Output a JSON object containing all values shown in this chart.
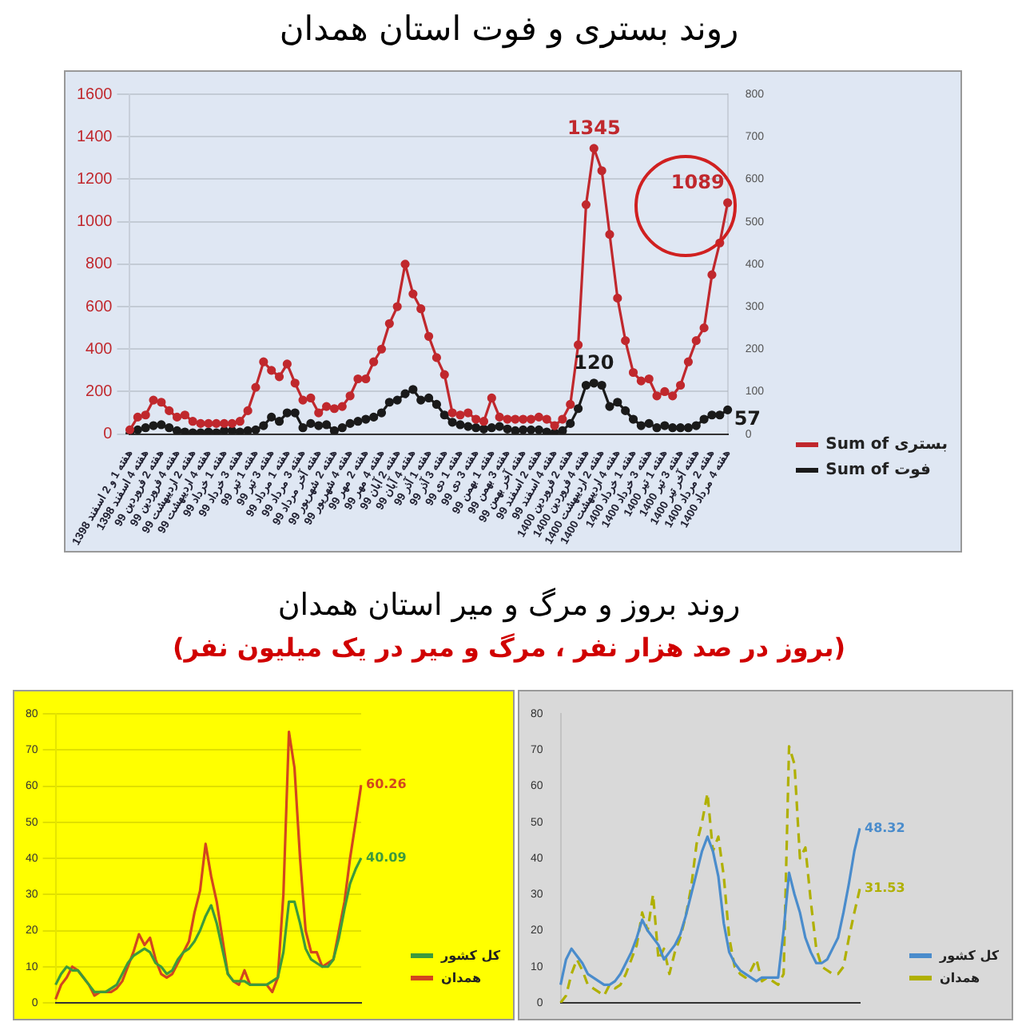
{
  "chart_data": [
    {
      "type": "line",
      "title": "روند بستری و فوت استان همدان",
      "categories": [
        "هفته 1 و 2 اسفند 1398",
        null,
        "هفته 4 اسفند 1398",
        null,
        "هفته 2 فروردین 99",
        null,
        "هفته 4 فروردین 99",
        null,
        "هفته 2 اردیبهشت 99",
        null,
        "هفته 4 اردیبهشت 99",
        null,
        "هفته 1 خرداد 99",
        null,
        "هفته 3 خرداد 99",
        null,
        "هفته 1 تیر 99",
        null,
        "هفته 3 تیر 99",
        null,
        "هفته 1 مرداد 99",
        null,
        "هفته 3 مرداد 99",
        null,
        "هفته آخر مرداد 99",
        null,
        "هفته 2 شهریور 99",
        null,
        "هفته 4 شهریور 99",
        null,
        "هفته 2 مهر 99",
        null,
        "هفته 4 مهر 99",
        null,
        "هفته 2 آبان 99",
        null,
        "هفته 4 آبان 99",
        null,
        "هفته 1 آذر 99",
        null,
        "هفته 3 آذر 99",
        null,
        "هفته 1 دی 99",
        null,
        "هفته 3 دی 99",
        null,
        "هفته 1 بهمن 99",
        null,
        "هفته 3 بهمن 99",
        null,
        "هفته آخر بهمن 99",
        null,
        "هفته 2 اسفند 99",
        null,
        "هفته 4 اسفند 99",
        null,
        "هفته 2 فروردین 1400",
        null,
        "هفته 4 فروردین 1400",
        null,
        "هفته 2 اردیبهشت 1400",
        null,
        "هفته 4 اردیبهشت 1400",
        null,
        "هفته 1 خرداد 1400",
        null,
        "هفته 3 خرداد 1400",
        null,
        "هفته 1 تیر 1400",
        null,
        "هفته 3 تیر 1400",
        null,
        "هفته آخر تیر 1400",
        null,
        "هفته 2 مرداد 1400",
        null,
        "هفته 4 مرداد 1400"
      ],
      "series": [
        {
          "name": "Sum of بستری",
          "color": "#c0282d",
          "values": [
            20,
            80,
            90,
            160,
            150,
            110,
            80,
            90,
            60,
            50,
            50,
            50,
            50,
            50,
            60,
            110,
            220,
            340,
            300,
            270,
            330,
            240,
            160,
            170,
            100,
            130,
            120,
            130,
            180,
            260,
            260,
            340,
            400,
            520,
            600,
            800,
            660,
            590,
            460,
            360,
            280,
            100,
            90,
            100,
            70,
            60,
            170,
            80,
            70,
            70,
            70,
            70,
            80,
            70,
            40,
            70,
            140,
            420,
            1080,
            1345,
            1240,
            940,
            640,
            440,
            290,
            250,
            260,
            180,
            200,
            180,
            230,
            340,
            440,
            500,
            750,
            900,
            1089
          ],
          "value_labels": [
            null,
            null,
            null,
            null,
            null,
            null,
            null,
            null,
            null,
            null,
            null,
            null,
            null,
            null,
            null,
            null,
            null,
            null,
            null,
            null,
            null,
            null,
            null,
            null,
            null,
            null,
            null,
            null,
            null,
            null,
            null,
            null,
            null,
            null,
            null,
            null,
            null,
            null,
            null,
            null,
            null,
            null,
            null,
            null,
            null,
            null,
            null,
            null,
            null,
            null,
            null,
            null,
            null,
            null,
            null,
            null,
            null,
            null,
            null,
            "1345",
            null,
            null,
            null,
            null,
            null,
            null,
            null,
            null,
            null,
            null,
            null,
            null,
            null,
            null,
            null,
            null,
            "1089"
          ]
        },
        {
          "name": "Sum of فوت",
          "color": "#1a1a1a",
          "axis": "y2",
          "values": [
            0,
            10,
            15,
            20,
            22,
            15,
            8,
            5,
            3,
            3,
            5,
            3,
            8,
            8,
            5,
            8,
            10,
            20,
            40,
            30,
            50,
            50,
            15,
            25,
            20,
            22,
            8,
            15,
            25,
            30,
            35,
            40,
            50,
            75,
            80,
            95,
            105,
            80,
            85,
            70,
            45,
            28,
            22,
            18,
            15,
            12,
            15,
            18,
            12,
            8,
            10,
            10,
            10,
            5,
            3,
            8,
            25,
            60,
            115,
            120,
            115,
            65,
            75,
            55,
            35,
            20,
            25,
            15,
            20,
            15,
            15,
            15,
            20,
            35,
            45,
            45,
            57
          ],
          "value_labels": [
            null,
            null,
            null,
            null,
            null,
            null,
            null,
            null,
            null,
            null,
            null,
            null,
            null,
            null,
            null,
            null,
            null,
            null,
            null,
            null,
            null,
            null,
            null,
            null,
            null,
            null,
            null,
            null,
            null,
            null,
            null,
            null,
            null,
            null,
            null,
            null,
            null,
            null,
            null,
            null,
            null,
            null,
            null,
            null,
            null,
            null,
            null,
            null,
            null,
            null,
            null,
            null,
            null,
            null,
            null,
            null,
            null,
            null,
            null,
            "120",
            null,
            null,
            null,
            null,
            null,
            null,
            null,
            null,
            null,
            null,
            null,
            null,
            null,
            null,
            null,
            null,
            "57"
          ]
        }
      ],
      "ylim": [
        0,
        1600
      ],
      "yticks": [
        0,
        200,
        400,
        600,
        800,
        1000,
        1200,
        1400,
        1600
      ],
      "y2lim": [
        0,
        800
      ],
      "y2ticks": [
        0,
        100,
        200,
        300,
        400,
        500,
        600,
        700,
        800
      ],
      "grid": "y",
      "legend": "bottom right",
      "marker": "circle"
    },
    {
      "type": "line",
      "title": "روند بروز و مرگ و میر استان همدان",
      "subtitle": "(بروز در صد هزار نفر ، مرگ و میر در یک میلیون نفر)",
      "categories": [
        null,
        null,
        null,
        null,
        null,
        null,
        null,
        null,
        null,
        null,
        null,
        null,
        null,
        null,
        null,
        null,
        null,
        null,
        null,
        null,
        null,
        null,
        null,
        null,
        null,
        null,
        null,
        null,
        null,
        null,
        null,
        null,
        null,
        null,
        null,
        null,
        null,
        null,
        null,
        null,
        null,
        null,
        null,
        null,
        null,
        null,
        null,
        null,
        null,
        null,
        null,
        null,
        null,
        null,
        null,
        null
      ],
      "series": [
        {
          "name": "کل کشور",
          "color": "#3c9a3c",
          "values": [
            5,
            8,
            10,
            9,
            9,
            7,
            5,
            3,
            3,
            3,
            4,
            5,
            8,
            11,
            13,
            14,
            15,
            14,
            11,
            10,
            8,
            9,
            12,
            14,
            15,
            17,
            20,
            24,
            27,
            22,
            15,
            8,
            6,
            6,
            6,
            5,
            5,
            5,
            5,
            6,
            7,
            14,
            28,
            28,
            22,
            15,
            12,
            11,
            10,
            10,
            12,
            18,
            26,
            33,
            37,
            40.09
          ],
          "value_labels": [
            null,
            null,
            null,
            null,
            null,
            null,
            null,
            null,
            null,
            null,
            null,
            null,
            null,
            null,
            null,
            null,
            null,
            null,
            null,
            null,
            null,
            null,
            null,
            null,
            null,
            null,
            null,
            null,
            null,
            null,
            null,
            null,
            null,
            null,
            null,
            null,
            null,
            null,
            null,
            null,
            null,
            null,
            null,
            null,
            null,
            null,
            null,
            null,
            null,
            null,
            null,
            null,
            null,
            null,
            null,
            "40.09"
          ]
        },
        {
          "name": "همدان",
          "color": "#d2461e",
          "values": [
            1,
            5,
            7,
            10,
            9,
            7,
            5,
            2,
            3,
            3,
            3,
            4,
            6,
            10,
            14,
            19,
            16,
            18,
            12,
            8,
            7,
            8,
            11,
            14,
            17,
            25,
            31,
            44,
            35,
            28,
            18,
            8,
            6,
            5,
            9,
            5,
            5,
            5,
            5,
            3,
            7,
            30,
            75,
            65,
            40,
            20,
            14,
            14,
            10,
            11,
            12,
            20,
            28,
            40,
            50,
            60.26
          ],
          "value_labels": [
            null,
            null,
            null,
            null,
            null,
            null,
            null,
            null,
            null,
            null,
            null,
            null,
            null,
            null,
            null,
            null,
            null,
            null,
            null,
            null,
            null,
            null,
            null,
            null,
            null,
            null,
            null,
            null,
            null,
            null,
            null,
            null,
            null,
            null,
            null,
            null,
            null,
            null,
            null,
            null,
            null,
            null,
            null,
            null,
            null,
            null,
            null,
            null,
            null,
            null,
            null,
            null,
            null,
            null,
            null,
            "60.26"
          ]
        }
      ],
      "ylim": [
        0,
        80
      ],
      "yticks": [
        0,
        10,
        20,
        30,
        40,
        50,
        60,
        70,
        80
      ],
      "grid": "y",
      "legend": "bottom right",
      "tick_labels": "y"
    },
    {
      "type": "line",
      "categories": [
        null,
        null,
        null,
        null,
        null,
        null,
        null,
        null,
        null,
        null,
        null,
        null,
        null,
        null,
        null,
        null,
        null,
        null,
        null,
        null,
        null,
        null,
        null,
        null,
        null,
        null,
        null,
        null,
        null,
        null,
        null,
        null,
        null,
        null,
        null,
        null,
        null,
        null,
        null,
        null,
        null,
        null,
        null,
        null,
        null,
        null,
        null,
        null,
        null,
        null,
        null,
        null,
        null,
        null,
        null,
        null
      ],
      "series": [
        {
          "name": "کل کشور",
          "color": "#4a8ccc",
          "values": [
            5,
            12,
            15,
            13,
            11,
            8,
            7,
            6,
            5,
            5,
            6,
            8,
            11,
            14,
            18,
            23,
            20,
            18,
            16,
            12,
            14,
            16,
            19,
            24,
            30,
            36,
            42,
            46,
            42,
            35,
            22,
            14,
            11,
            9,
            8,
            7,
            6,
            7,
            7,
            7,
            7,
            20,
            36,
            30,
            25,
            18,
            14,
            11,
            11,
            12,
            15,
            18,
            25,
            33,
            42,
            48.32
          ],
          "value_labels": [
            null,
            null,
            null,
            null,
            null,
            null,
            null,
            null,
            null,
            null,
            null,
            null,
            null,
            null,
            null,
            null,
            null,
            null,
            null,
            null,
            null,
            null,
            null,
            null,
            null,
            null,
            null,
            null,
            null,
            null,
            null,
            null,
            null,
            null,
            null,
            null,
            null,
            null,
            null,
            null,
            null,
            null,
            null,
            null,
            null,
            null,
            null,
            null,
            null,
            null,
            null,
            null,
            null,
            null,
            null,
            "48.32"
          ]
        },
        {
          "name": "همدان",
          "color": "#b0b000",
          "line_style": "dashed",
          "values": [
            0,
            2,
            8,
            12,
            9,
            5,
            4,
            3,
            2,
            5,
            4,
            5,
            8,
            12,
            16,
            25,
            20,
            30,
            12,
            15,
            8,
            14,
            18,
            24,
            32,
            44,
            50,
            58,
            42,
            46,
            35,
            18,
            10,
            8,
            7,
            9,
            12,
            6,
            7,
            6,
            5,
            8,
            71,
            66,
            40,
            43,
            28,
            15,
            10,
            9,
            8,
            8,
            10,
            18,
            25,
            31.53
          ],
          "value_labels": [
            null,
            null,
            null,
            null,
            null,
            null,
            null,
            null,
            null,
            null,
            null,
            null,
            null,
            null,
            null,
            null,
            null,
            null,
            null,
            null,
            null,
            null,
            null,
            null,
            null,
            null,
            null,
            null,
            null,
            null,
            null,
            null,
            null,
            null,
            null,
            null,
            null,
            null,
            null,
            null,
            null,
            null,
            null,
            null,
            null,
            null,
            null,
            null,
            null,
            null,
            null,
            null,
            null,
            null,
            null,
            "31.53"
          ]
        }
      ],
      "ylim": [
        0,
        80
      ],
      "yticks": [
        0,
        10,
        20,
        30,
        40,
        50,
        60,
        70,
        80
      ],
      "legend": "bottom right",
      "tick_labels": "y"
    }
  ]
}
